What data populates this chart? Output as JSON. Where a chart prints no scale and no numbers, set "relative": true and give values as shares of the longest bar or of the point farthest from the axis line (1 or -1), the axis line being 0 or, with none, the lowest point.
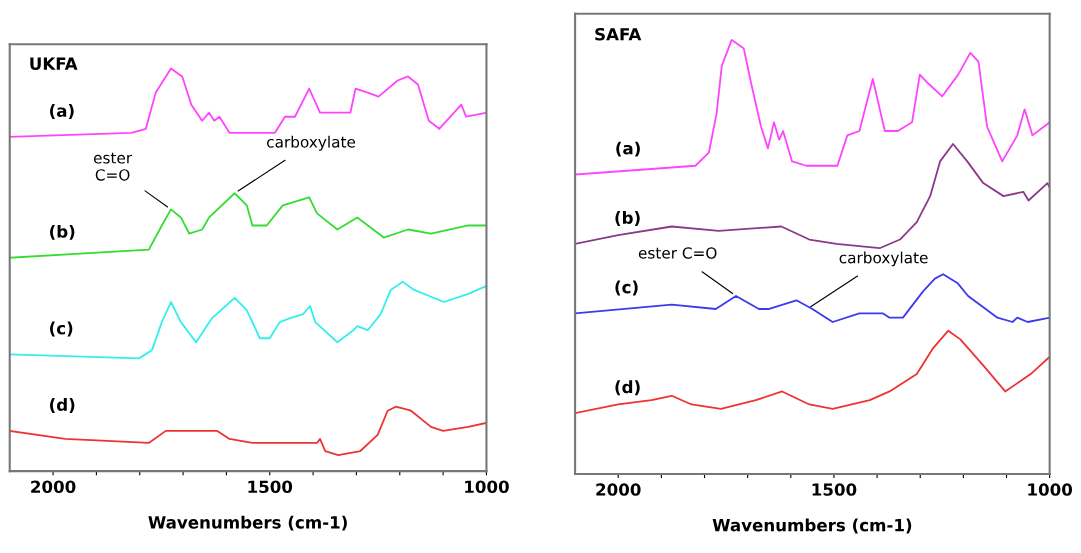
{
  "chart_data": [
    {
      "type": "line",
      "title": "UKFA",
      "xlabel": "Wavenumbers (cm-1)",
      "relative": true,
      "tick_labels": "x",
      "xlim": [
        2100,
        1000
      ],
      "xticks": [
        2000,
        {
          "value": 1900,
          "label": null
        },
        {
          "value": 1800,
          "label": null
        },
        {
          "value": 1700,
          "label": null
        },
        {
          "value": 1600,
          "label": null
        },
        1500,
        {
          "value": 1400,
          "label": null
        },
        {
          "value": 1300,
          "label": null
        },
        {
          "value": 1200,
          "label": null
        },
        {
          "value": 1100,
          "label": null
        },
        1000
      ],
      "annotations": [
        {
          "text": "ester\nC=O",
          "x": 1728,
          "y": 0.65
        },
        {
          "text": "carboxylate",
          "x": 1581,
          "y": 0.69
        }
      ],
      "series": [
        {
          "name": "(a)",
          "color": "#ff44ff",
          "x": [
            2100,
            1819,
            1786,
            1763,
            1728,
            1702,
            1681,
            1656,
            1640,
            1628,
            1616,
            1593,
            1570,
            1488,
            1465,
            1442,
            1409,
            1384,
            1360,
            1314,
            1302,
            1274,
            1249,
            1205,
            1181,
            1158,
            1133,
            1109,
            1058,
            1047,
            1000
          ],
          "values": [
            0.83,
            0.84,
            0.85,
            0.94,
            1.0,
            0.98,
            0.91,
            0.87,
            0.89,
            0.87,
            0.88,
            0.84,
            0.84,
            0.84,
            0.88,
            0.88,
            0.95,
            0.89,
            0.89,
            0.89,
            0.95,
            0.94,
            0.93,
            0.97,
            0.98,
            0.96,
            0.87,
            0.85,
            0.91,
            0.88,
            0.89
          ]
        },
        {
          "name": "(b)",
          "color": "#33dd33",
          "x": [
            2100,
            1779,
            1749,
            1728,
            1705,
            1686,
            1656,
            1640,
            1581,
            1553,
            1540,
            1507,
            1470,
            1409,
            1391,
            1344,
            1298,
            1237,
            1181,
            1128,
            1042,
            1000
          ],
          "values": [
            0.53,
            0.55,
            0.61,
            0.65,
            0.63,
            0.59,
            0.6,
            0.63,
            0.69,
            0.66,
            0.61,
            0.61,
            0.66,
            0.68,
            0.64,
            0.6,
            0.63,
            0.58,
            0.6,
            0.59,
            0.61,
            0.61
          ]
        },
        {
          "name": "(c)",
          "color": "#33eeee",
          "x": [
            2100,
            1802,
            1772,
            1749,
            1728,
            1705,
            1670,
            1633,
            1581,
            1553,
            1523,
            1500,
            1477,
            1453,
            1423,
            1407,
            1395,
            1344,
            1307,
            1298,
            1274,
            1244,
            1221,
            1193,
            1167,
            1098,
            1042,
            1000
          ],
          "values": [
            0.29,
            0.28,
            0.3,
            0.37,
            0.42,
            0.37,
            0.32,
            0.38,
            0.43,
            0.4,
            0.33,
            0.33,
            0.37,
            0.38,
            0.39,
            0.41,
            0.37,
            0.32,
            0.35,
            0.36,
            0.35,
            0.39,
            0.45,
            0.47,
            0.45,
            0.42,
            0.44,
            0.46
          ]
        },
        {
          "name": "(d)",
          "color": "#ee3333",
          "x": [
            2100,
            1972,
            1779,
            1740,
            1663,
            1656,
            1621,
            1593,
            1540,
            1500,
            1470,
            1391,
            1384,
            1372,
            1342,
            1291,
            1251,
            1228,
            1209,
            1174,
            1128,
            1100,
            1042,
            1000
          ],
          "values": [
            0.1,
            0.08,
            0.07,
            0.1,
            0.1,
            0.1,
            0.1,
            0.08,
            0.07,
            0.07,
            0.07,
            0.07,
            0.08,
            0.05,
            0.04,
            0.05,
            0.09,
            0.15,
            0.16,
            0.15,
            0.11,
            0.1,
            0.11,
            0.12
          ]
        }
      ]
    },
    {
      "type": "line",
      "title": "SAFA",
      "xlabel": "Wavenumbers (cm-1)",
      "relative": true,
      "tick_labels": "x",
      "xlim": [
        2100,
        1000
      ],
      "xticks": [
        2000,
        {
          "value": 1900,
          "label": null
        },
        {
          "value": 1800,
          "label": null
        },
        {
          "value": 1700,
          "label": null
        },
        {
          "value": 1600,
          "label": null
        },
        1500,
        {
          "value": 1400,
          "label": null
        },
        {
          "value": 1300,
          "label": null
        },
        {
          "value": 1200,
          "label": null
        },
        {
          "value": 1100,
          "label": null
        },
        1000
      ],
      "annotations": [
        {
          "text": "ester C=O",
          "x": 1727,
          "y": 0.41
        },
        {
          "text": "carboxylate",
          "x": 1562,
          "y": 0.38
        }
      ],
      "series": [
        {
          "name": "(a)",
          "color": "#ff44ff",
          "x": [
            2098,
            1821,
            1790,
            1772,
            1760,
            1737,
            1709,
            1692,
            1669,
            1653,
            1639,
            1627,
            1618,
            1597,
            1564,
            1492,
            1469,
            1441,
            1410,
            1382,
            1352,
            1319,
            1301,
            1282,
            1249,
            1212,
            1184,
            1165,
            1145,
            1110,
            1075,
            1058,
            1040,
            1000
          ],
          "values": [
            0.69,
            0.71,
            0.74,
            0.83,
            0.94,
            1.0,
            0.98,
            0.9,
            0.8,
            0.75,
            0.81,
            0.77,
            0.79,
            0.72,
            0.71,
            0.71,
            0.78,
            0.79,
            0.91,
            0.79,
            0.79,
            0.81,
            0.92,
            0.9,
            0.87,
            0.92,
            0.97,
            0.95,
            0.8,
            0.72,
            0.78,
            0.84,
            0.78,
            0.81
          ]
        },
        {
          "name": "(b)",
          "color": "#8b3a8b",
          "x": [
            2100,
            2000,
            1876,
            1767,
            1622,
            1557,
            1494,
            1394,
            1347,
            1308,
            1277,
            1254,
            1224,
            1191,
            1154,
            1107,
            1061,
            1049,
            1005,
            1000
          ],
          "values": [
            0.53,
            0.55,
            0.57,
            0.56,
            0.57,
            0.54,
            0.53,
            0.52,
            0.54,
            0.58,
            0.64,
            0.72,
            0.76,
            0.72,
            0.67,
            0.64,
            0.65,
            0.63,
            0.67,
            0.66
          ]
        },
        {
          "name": "(c)",
          "color": "#3a3aee",
          "x": [
            2100,
            1876,
            1774,
            1727,
            1674,
            1650,
            1587,
            1550,
            1503,
            1441,
            1387,
            1371,
            1340,
            1294,
            1266,
            1247,
            1214,
            1189,
            1121,
            1086,
            1075,
            1051,
            1000
          ],
          "values": [
            0.37,
            0.39,
            0.38,
            0.41,
            0.38,
            0.38,
            0.4,
            0.38,
            0.35,
            0.37,
            0.37,
            0.36,
            0.36,
            0.42,
            0.45,
            0.46,
            0.44,
            0.41,
            0.36,
            0.35,
            0.36,
            0.35,
            0.36
          ]
        },
        {
          "name": "(d)",
          "color": "#ee3333",
          "x": [
            2100,
            2000,
            1923,
            1876,
            1830,
            1762,
            1681,
            1620,
            1557,
            1503,
            1417,
            1371,
            1308,
            1270,
            1235,
            1207,
            1154,
            1103,
            1044,
            1000
          ],
          "values": [
            0.14,
            0.16,
            0.17,
            0.18,
            0.16,
            0.15,
            0.17,
            0.19,
            0.16,
            0.15,
            0.17,
            0.19,
            0.23,
            0.29,
            0.33,
            0.31,
            0.25,
            0.19,
            0.23,
            0.27
          ]
        }
      ]
    }
  ]
}
